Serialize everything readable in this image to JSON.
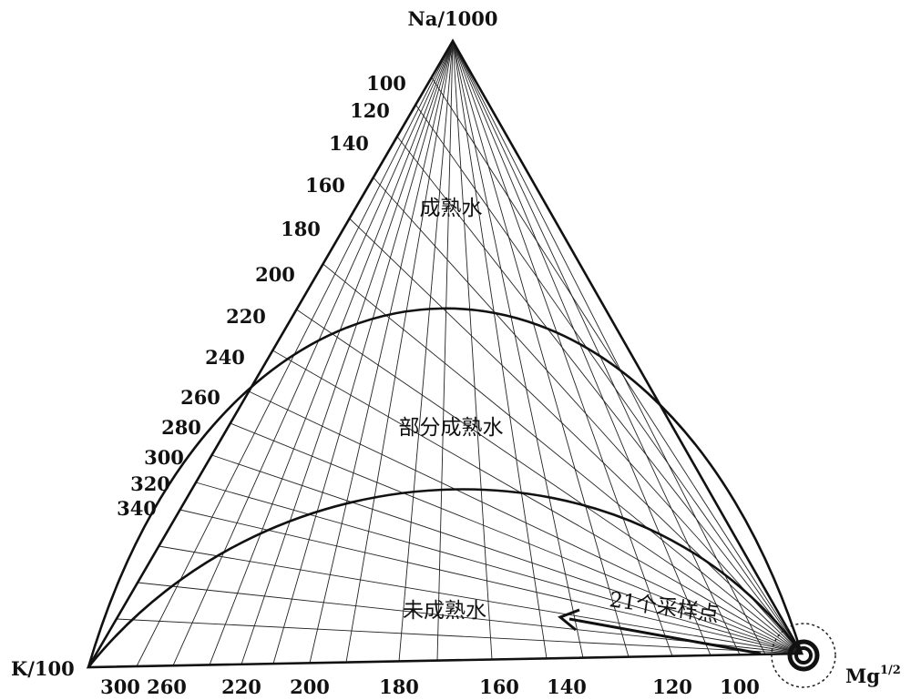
{
  "vertices": {
    "top": "Na/1000",
    "left": "K/100",
    "right": "Mg",
    "right_exponent": "1/2"
  },
  "left_scale": [
    "100",
    "120",
    "140",
    "160",
    "180",
    "200",
    "220",
    "240",
    "260",
    "280",
    "300",
    "320",
    "340"
  ],
  "bottom_scale": [
    "300",
    "260",
    "220",
    "200",
    "180",
    "160",
    "140",
    "120",
    "100"
  ],
  "regions": [
    "成熟水",
    "部分成熟水",
    "未成熟水"
  ],
  "annotation": "21个采样点"
}
